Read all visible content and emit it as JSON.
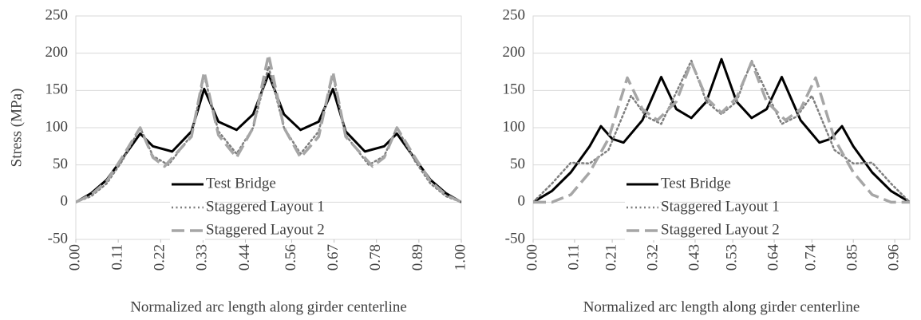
{
  "chart_data": [
    {
      "type": "line",
      "ylabel": "Stress (MPa)",
      "xlabel": "Normalized arc length along girder centerline",
      "xlim": [
        0,
        1
      ],
      "ylim": [
        -50,
        250
      ],
      "yticks": [
        -50,
        0,
        50,
        100,
        150,
        200,
        250
      ],
      "xticks": [
        {
          "value": 0,
          "label": "0.00"
        },
        {
          "value": 0.11,
          "label": "0.11"
        },
        {
          "value": 0.22,
          "label": "0.22"
        },
        {
          "value": 0.33,
          "label": "0.33"
        },
        {
          "value": 0.44,
          "label": "0.44"
        },
        {
          "value": 0.56,
          "label": "0.56"
        },
        {
          "value": 0.67,
          "label": "0.67"
        },
        {
          "value": 0.78,
          "label": "0.78"
        },
        {
          "value": 0.89,
          "label": "0.89"
        },
        {
          "value": 1,
          "label": "1.00"
        }
      ],
      "grid": true,
      "series": [
        {
          "name": "Test Bridge",
          "color": "#000000",
          "style": "solid",
          "x": [
            0,
            0.04,
            0.08,
            0.12,
            0.167,
            0.2,
            0.25,
            0.3,
            0.333,
            0.37,
            0.417,
            0.46,
            0.5,
            0.54,
            0.583,
            0.63,
            0.667,
            0.7,
            0.75,
            0.8,
            0.833,
            0.88,
            0.92,
            0.96,
            1
          ],
          "values": [
            0,
            12,
            30,
            58,
            92,
            75,
            68,
            95,
            152,
            108,
            97,
            118,
            172,
            118,
            97,
            108,
            152,
            95,
            68,
            75,
            92,
            58,
            30,
            12,
            0
          ]
        },
        {
          "name": "Staggered Layout 1",
          "color": "#7f7f7f",
          "style": "dotted",
          "x": [
            0,
            0.04,
            0.08,
            0.12,
            0.167,
            0.2,
            0.24,
            0.3,
            0.333,
            0.37,
            0.417,
            0.46,
            0.5,
            0.54,
            0.583,
            0.63,
            0.667,
            0.7,
            0.76,
            0.8,
            0.833,
            0.88,
            0.92,
            0.96,
            1
          ],
          "values": [
            0,
            8,
            25,
            55,
            100,
            62,
            50,
            90,
            170,
            95,
            65,
            100,
            182,
            100,
            65,
            95,
            170,
            90,
            50,
            62,
            100,
            55,
            25,
            8,
            0
          ]
        },
        {
          "name": "Staggered Layout 2",
          "color": "#a6a6a6",
          "style": "dashed",
          "x": [
            0,
            0.04,
            0.08,
            0.12,
            0.167,
            0.2,
            0.23,
            0.3,
            0.333,
            0.37,
            0.417,
            0.46,
            0.5,
            0.54,
            0.583,
            0.63,
            0.667,
            0.7,
            0.77,
            0.8,
            0.833,
            0.88,
            0.92,
            0.96,
            1
          ],
          "values": [
            0,
            10,
            28,
            60,
            100,
            60,
            48,
            88,
            175,
            90,
            60,
            100,
            198,
            100,
            60,
            88,
            175,
            88,
            48,
            60,
            100,
            60,
            28,
            10,
            0
          ]
        }
      ]
    },
    {
      "type": "line",
      "xlabel": "Normalized arc length along girder centerline",
      "xlim": [
        0,
        1
      ],
      "ylim": [
        -50,
        250
      ],
      "yticks": [
        -50,
        0,
        50,
        100,
        150,
        200,
        250
      ],
      "xticks": [
        {
          "value": 0,
          "label": "0.00"
        },
        {
          "value": 0.11,
          "label": "0.11"
        },
        {
          "value": 0.21,
          "label": "0.21"
        },
        {
          "value": 0.32,
          "label": "0.32"
        },
        {
          "value": 0.43,
          "label": "0.43"
        },
        {
          "value": 0.53,
          "label": "0.53"
        },
        {
          "value": 0.64,
          "label": "0.64"
        },
        {
          "value": 0.74,
          "label": "0.74"
        },
        {
          "value": 0.85,
          "label": "0.85"
        },
        {
          "value": 0.96,
          "label": "0.96"
        }
      ],
      "grid": true,
      "series": [
        {
          "name": "Test Bridge",
          "color": "#000000",
          "style": "solid",
          "x": [
            0,
            0.05,
            0.1,
            0.15,
            0.18,
            0.21,
            0.24,
            0.29,
            0.34,
            0.38,
            0.42,
            0.46,
            0.5,
            0.54,
            0.58,
            0.62,
            0.66,
            0.71,
            0.76,
            0.79,
            0.82,
            0.85,
            0.9,
            0.95,
            1
          ],
          "values": [
            0,
            15,
            40,
            75,
            102,
            85,
            80,
            110,
            168,
            125,
            113,
            135,
            192,
            135,
            113,
            125,
            168,
            110,
            80,
            85,
            102,
            75,
            40,
            15,
            0
          ]
        },
        {
          "name": "Staggered Layout 1",
          "color": "#7f7f7f",
          "style": "dotted",
          "x": [
            0,
            0.05,
            0.1,
            0.15,
            0.2,
            0.26,
            0.3,
            0.34,
            0.42,
            0.46,
            0.5,
            0.54,
            0.58,
            0.66,
            0.7,
            0.74,
            0.8,
            0.85,
            0.9,
            0.95,
            1
          ],
          "values": [
            0,
            25,
            53,
            52,
            70,
            143,
            115,
            105,
            190,
            135,
            118,
            135,
            190,
            105,
            115,
            143,
            70,
            52,
            53,
            25,
            0
          ]
        },
        {
          "name": "Staggered Layout 2",
          "color": "#a6a6a6",
          "style": "dashed",
          "x": [
            0,
            0.05,
            0.1,
            0.15,
            0.2,
            0.25,
            0.29,
            0.33,
            0.38,
            0.42,
            0.46,
            0.5,
            0.54,
            0.58,
            0.62,
            0.67,
            0.71,
            0.75,
            0.8,
            0.85,
            0.9,
            0.95,
            1
          ],
          "values": [
            0,
            0,
            10,
            40,
            85,
            167,
            125,
            110,
            135,
            188,
            140,
            120,
            140,
            188,
            135,
            110,
            125,
            167,
            85,
            40,
            10,
            0,
            0
          ]
        }
      ]
    }
  ]
}
